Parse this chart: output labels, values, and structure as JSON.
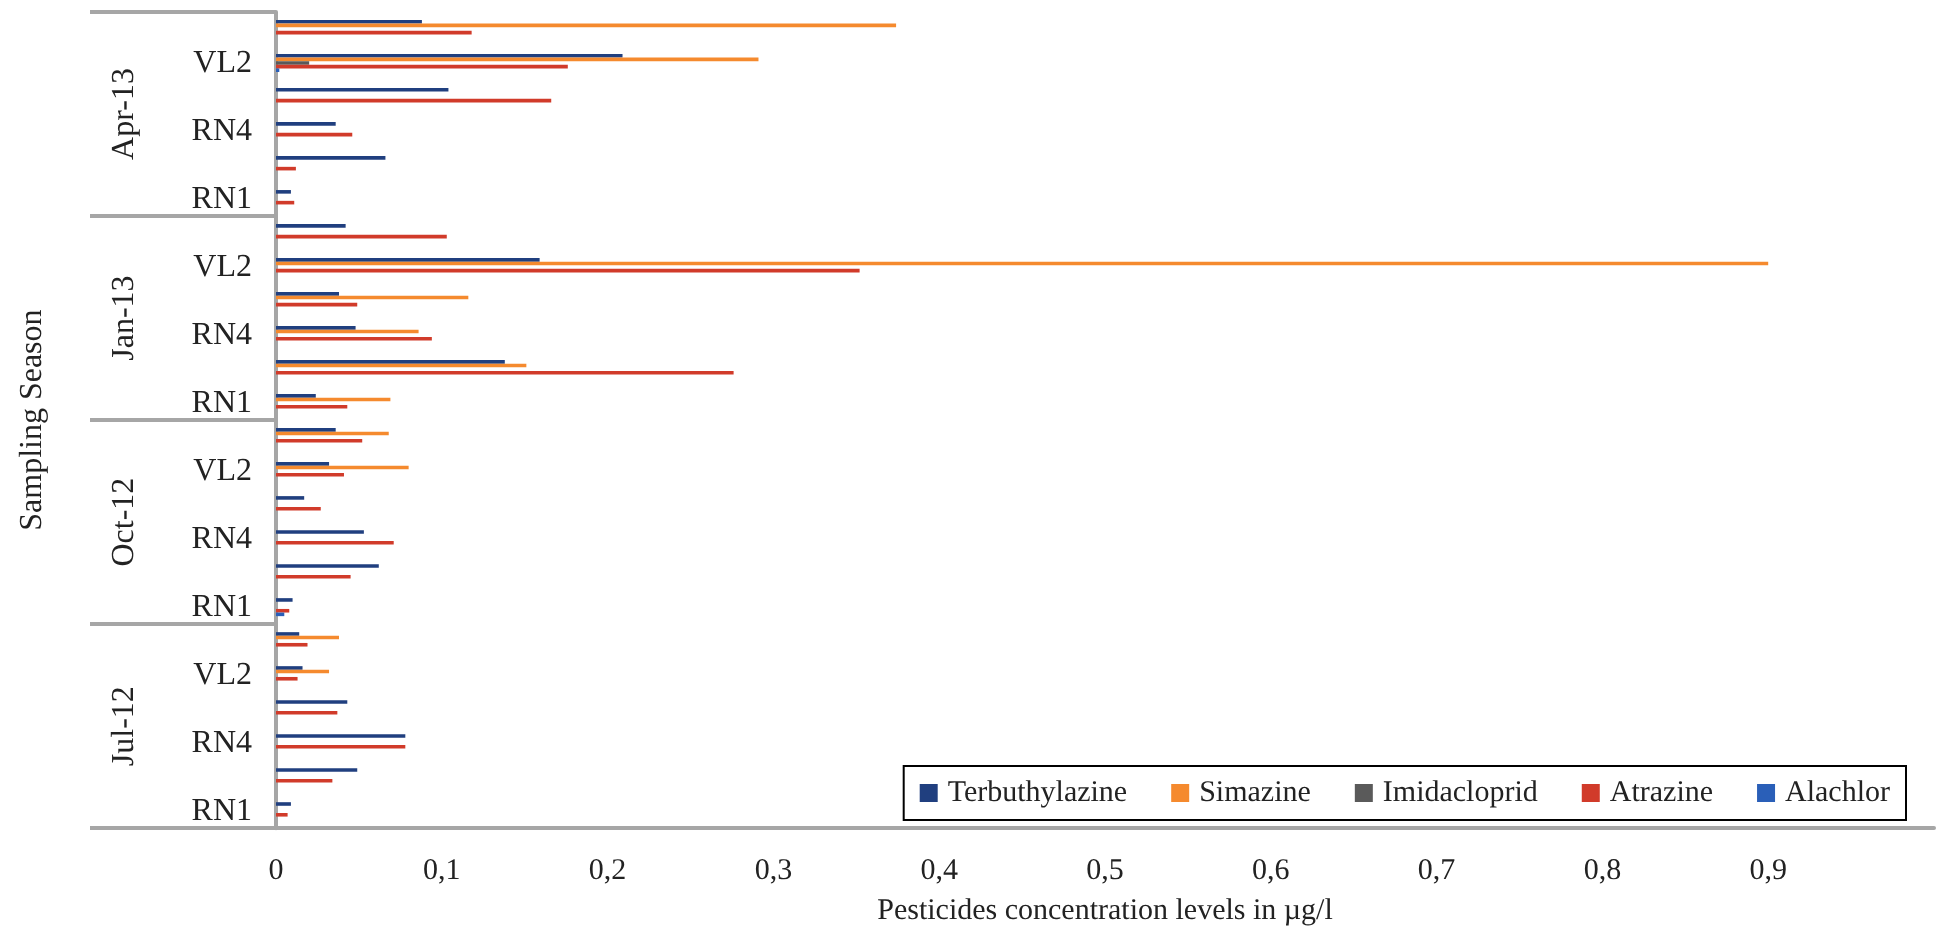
{
  "chart_data": {
    "type": "bar",
    "orientation": "horizontal",
    "xlabel": "Pesticides concentration levels in µg/l",
    "ylabel": "Sampling Season",
    "annotations": [
      "Apr-13",
      "Jan-13",
      "Oct-12",
      "Jul-12"
    ],
    "categories": [
      null,
      "VL2",
      null,
      "RN4",
      null,
      "RN1",
      null,
      "VL2",
      null,
      "RN4",
      null,
      "RN1",
      null,
      "VL2",
      null,
      "RN4",
      null,
      "RN1",
      null,
      "VL2",
      null,
      "RN4",
      null,
      "RN1"
    ],
    "series": [
      {
        "name": "Terbuthylazine",
        "color": "#203f7f",
        "values": [
          0.088,
          0.209,
          0.104,
          0.036,
          0.066,
          0.009,
          0.042,
          0.159,
          0.038,
          0.048,
          0.138,
          0.024,
          0.036,
          0.032,
          0.017,
          0.053,
          0.062,
          0.01,
          0.014,
          0.016,
          0.043,
          0.078,
          0.049,
          0.009
        ]
      },
      {
        "name": "Simazine",
        "color": "#f58a2e",
        "values": [
          0.374,
          0.291,
          null,
          null,
          null,
          null,
          null,
          0.9,
          0.116,
          0.086,
          0.151,
          0.069,
          0.068,
          0.08,
          null,
          null,
          null,
          null,
          0.038,
          0.032,
          null,
          null,
          null,
          null
        ]
      },
      {
        "name": "Imidacloprid",
        "color": "#5a5a5a",
        "values": [
          null,
          0.02,
          null,
          null,
          null,
          null,
          null,
          null,
          null,
          null,
          null,
          null,
          null,
          null,
          null,
          null,
          null,
          null,
          null,
          null,
          null,
          null,
          null,
          null
        ]
      },
      {
        "name": "Atrazine",
        "color": "#d13b2a",
        "values": [
          0.118,
          0.176,
          0.166,
          0.046,
          0.012,
          0.011,
          0.103,
          0.352,
          0.049,
          0.094,
          0.276,
          0.043,
          0.052,
          0.041,
          0.027,
          0.071,
          0.045,
          0.008,
          0.019,
          0.013,
          0.037,
          0.078,
          0.034,
          0.007
        ]
      },
      {
        "name": "Alachlor",
        "color": "#2a5fb8",
        "values": [
          null,
          0.002,
          null,
          null,
          null,
          null,
          null,
          null,
          null,
          null,
          null,
          null,
          null,
          null,
          null,
          null,
          null,
          0.005,
          null,
          null,
          null,
          null,
          null,
          null
        ]
      }
    ],
    "xlim": [
      0,
      1
    ],
    "xticks": [
      0,
      {
        "value": 0.1,
        "label": "0,1"
      },
      {
        "value": 0.2,
        "label": "0,2"
      },
      {
        "value": 0.3,
        "label": "0,3"
      },
      {
        "value": 0.4,
        "label": "0,4"
      },
      {
        "value": 0.5,
        "label": "0,5"
      },
      {
        "value": 0.6,
        "label": "0,6"
      },
      {
        "value": 0.7,
        "label": "0,7"
      },
      {
        "value": 0.8,
        "label": "0,8"
      },
      {
        "value": 0.9,
        "label": "0,9"
      },
      {
        "value": 1,
        "label": null
      }
    ],
    "legend": "bottom right"
  }
}
